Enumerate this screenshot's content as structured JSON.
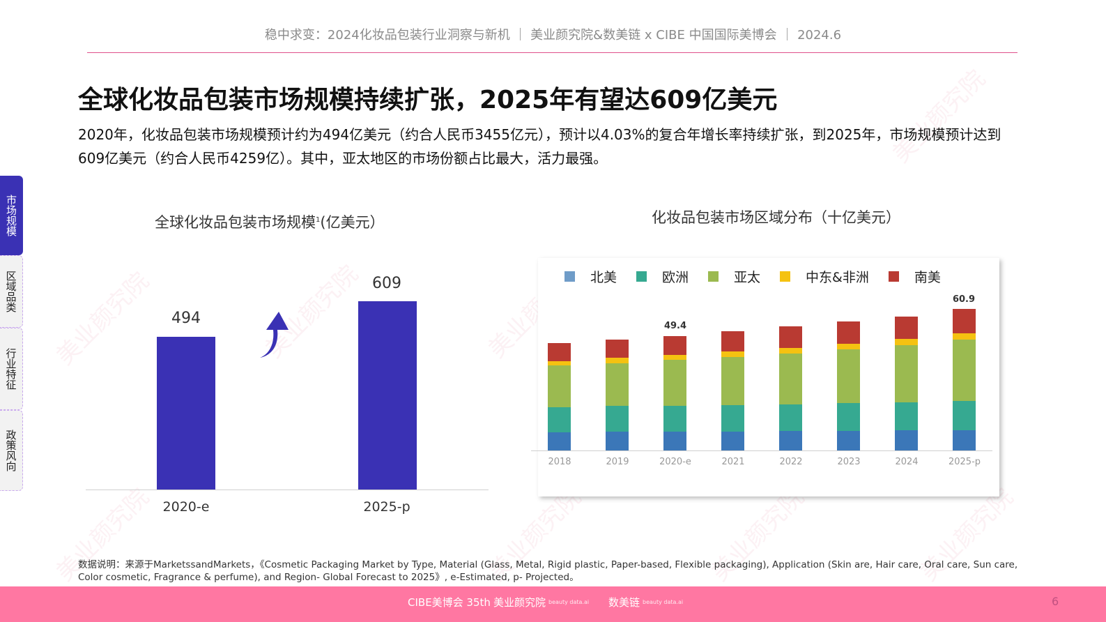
{
  "header": {
    "text": "稳中求变：2024化妆品包装行业洞察与新机  ｜  美业颜究院&数美链  x CIBE 中国国际美博会  ｜  2024.6"
  },
  "title": "全球化妆品包装市场规模持续扩张，2025年有望达609亿美元",
  "description": "2020年，化妆品包装市场规模预计约为494亿美元（约合人民币3455亿元），预计以4.03%的复合年增长率持续扩张，到2025年，市场规模预计达到609亿美元（约合人民币4259亿）。其中，亚太地区的市场份额占比最大，活力最强。",
  "sidebar": {
    "tabs": [
      {
        "label": "市场规模",
        "active": true
      },
      {
        "label": "区域品类",
        "active": false
      },
      {
        "label": "行业特征",
        "active": false
      },
      {
        "label": "政策风向",
        "active": false
      }
    ]
  },
  "left_chart": {
    "title": "全球化妆品包装市场规模",
    "title_sup": "1",
    "title_unit": "(亿美元）",
    "bar_color": "#3a31b4",
    "arrow": "up-arrow-icon"
  },
  "right_chart": {
    "title": "化妆品包装市场区域分布（十亿美元）"
  },
  "chart_data": [
    {
      "type": "bar",
      "title": "全球化妆品包装市场规模(亿美元）",
      "categories": [
        "2020-e",
        "2025-p"
      ],
      "values": [
        494,
        609
      ],
      "xlabel": "",
      "ylabel": "亿美元",
      "ylim": [
        0,
        650
      ],
      "grid": false,
      "legend": null
    },
    {
      "type": "bar",
      "stacked": true,
      "title": "化妆品包装市场区域分布（十亿美元）",
      "categories": [
        "2018",
        "2019",
        "2020-e",
        "2021",
        "2022",
        "2023",
        "2024",
        "2025-p"
      ],
      "series": [
        {
          "name": "北美",
          "color": "#3b77b8",
          "values": [
            7.9,
            8.0,
            8.0,
            8.2,
            8.3,
            8.3,
            8.6,
            8.7
          ]
        },
        {
          "name": "欧洲",
          "color": "#36a991",
          "values": [
            10.6,
            11.2,
            11.3,
            11.4,
            11.6,
            12.0,
            12.2,
            12.6
          ]
        },
        {
          "name": "亚太",
          "color": "#9bba50",
          "values": [
            18.0,
            18.3,
            19.6,
            20.6,
            21.9,
            23.3,
            24.6,
            26.4
          ]
        },
        {
          "name": "中东&非洲",
          "color": "#f5c211",
          "values": [
            2.0,
            2.3,
            2.3,
            2.4,
            2.5,
            2.5,
            2.6,
            2.9
          ]
        },
        {
          "name": "南美",
          "color": "#b93a32",
          "values": [
            7.9,
            8.0,
            8.2,
            8.8,
            9.1,
            9.5,
            9.8,
            10.3
          ]
        }
      ],
      "totals_labeled": {
        "2020-e": 49.4,
        "2025-p": 60.9
      },
      "xlabel": "",
      "ylabel": "十亿美元",
      "ylim": [
        0,
        65
      ],
      "grid": false,
      "legend_position": "top"
    }
  ],
  "footnote": "数据说明：来源于MarketssandMarkets，《Cosmetic Packaging Market by Type, Material (Glass, Metal, Rigid plastic, Paper-based, Flexible packaging), Application (Skin are, Hair care, Oral care, Sun care, Color cosmetic, Fragrance & perfume), and Region- Global Forecast to 2025》, e-Estimated, p- Projected。",
  "footer": {
    "logos": [
      {
        "name": "CIBE 美博会 35",
        "text": "CIBE美博会 35th"
      },
      {
        "name": "美业颜究院",
        "text": "美业颜究院",
        "sub": "beauty data.ai"
      },
      {
        "name": "数美链",
        "text": "数美链",
        "sub": "beauty data.ai"
      }
    ],
    "page_number": "6",
    "color": "#ff77a2"
  },
  "watermark": "美业颜究院"
}
